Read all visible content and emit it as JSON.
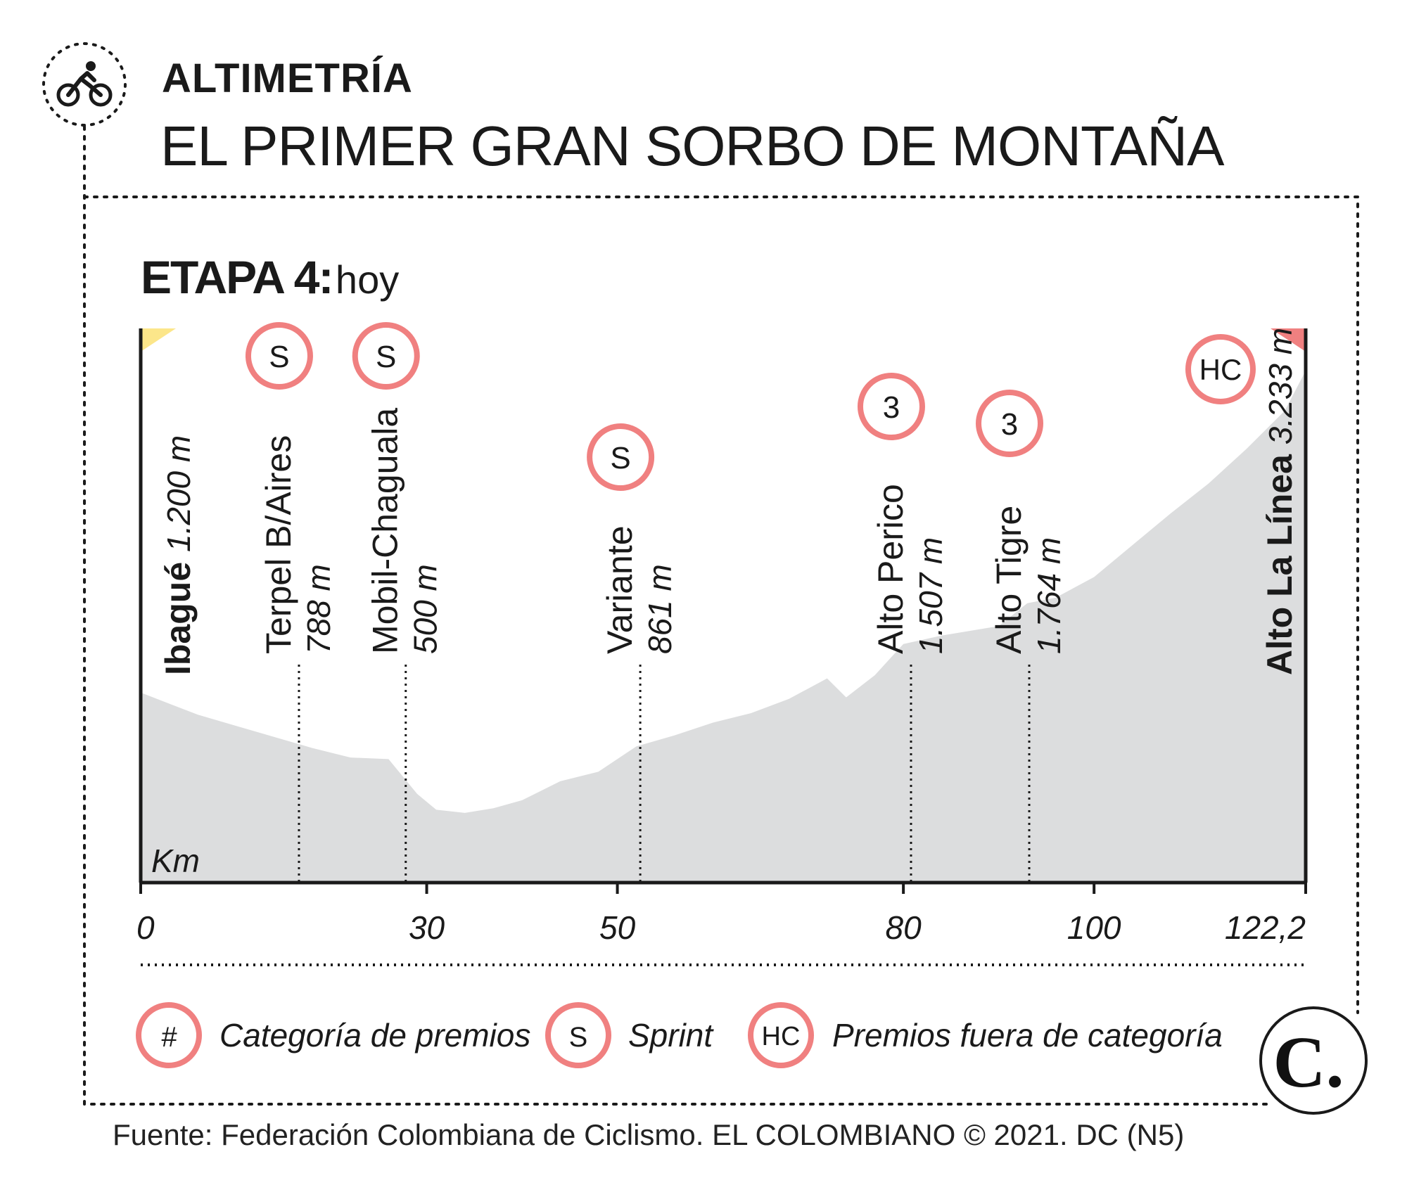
{
  "header": {
    "kicker": "ALTIMETRÍA",
    "title": "EL PRIMER GRAN SORBO DE MONTAÑA",
    "icon": "cyclist-icon"
  },
  "stage": {
    "label": "ETAPA 4:",
    "when": "hoy"
  },
  "colors": {
    "profile_fill": "#dcddde",
    "badge_ring": "#f08080",
    "start_flag": "#fce68a",
    "finish_flag": "#f08080",
    "axis": "#1a1a1a"
  },
  "chart_data": {
    "type": "area",
    "title": "",
    "xlabel": "Km",
    "ylabel": "",
    "xlim": [
      0,
      122.2
    ],
    "ylim": [
      0,
      3500
    ],
    "x_ticks": [
      {
        "value": 0,
        "label": "0"
      },
      {
        "value": 30,
        "label": "30"
      },
      {
        "value": 50,
        "label": "50"
      },
      {
        "value": 80,
        "label": "80"
      },
      {
        "value": 100,
        "label": "100"
      },
      {
        "value": 122.2,
        "label": "122,2"
      }
    ],
    "profile": {
      "x": [
        0,
        3,
        6,
        10,
        14,
        18,
        22,
        26,
        29,
        31,
        34,
        37,
        40,
        44,
        48,
        52,
        56,
        60,
        64,
        68,
        72,
        74,
        77,
        80,
        84,
        88,
        90,
        93,
        96,
        100,
        104,
        108,
        112,
        116,
        120,
        122.2
      ],
      "y": [
        1200,
        1130,
        1060,
        990,
        920,
        850,
        790,
        780,
        560,
        460,
        440,
        470,
        520,
        640,
        700,
        861,
        930,
        1010,
        1070,
        1160,
        1290,
        1170,
        1310,
        1507,
        1560,
        1600,
        1620,
        1764,
        1800,
        1930,
        2130,
        2330,
        2520,
        2740,
        2980,
        3233
      ]
    },
    "start": {
      "name": "Ibagué",
      "elevation": "1.200 m",
      "km": 0
    },
    "finish": {
      "name": "Alto La Línea",
      "elevation": "3.233 m",
      "km": 122.2,
      "badge": "HC"
    },
    "points": [
      {
        "name": "Terpel B/Aires",
        "elevation": "788 m",
        "km": 16.6,
        "badge": "S"
      },
      {
        "name": "Mobil-Chaguala",
        "elevation": "500 m",
        "km": 27.8,
        "badge": "S"
      },
      {
        "name": "Variante",
        "elevation": "861 m",
        "km": 52.4,
        "badge": "S"
      },
      {
        "name": "Alto Perico",
        "elevation": "1.507 m",
        "km": 80.8,
        "badge": "3"
      },
      {
        "name": "Alto Tigre",
        "elevation": "1.764 m",
        "km": 93.2,
        "badge": "3"
      }
    ]
  },
  "legend": [
    {
      "symbol": "#",
      "text": "Categoría de premios"
    },
    {
      "symbol": "S",
      "text": "Sprint"
    },
    {
      "symbol": "HC",
      "text": "Premios fuera de categoría"
    }
  ],
  "logo": {
    "mark": "C."
  },
  "source": "Fuente: Federación Colombiana de Ciclismo. EL COLOMBIANO © 2021. DC (N5)"
}
